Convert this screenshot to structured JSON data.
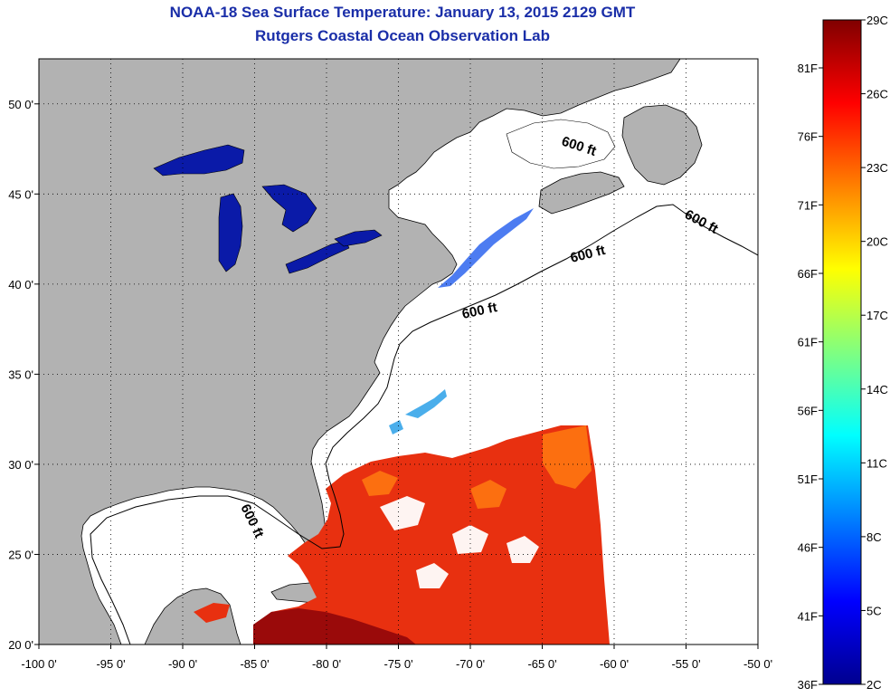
{
  "title": "NOAA-18 Sea Surface Temperature:  January 13, 2015 2129 GMT",
  "subtitle": "Rutgers Coastal Ocean Observation Lab",
  "map": {
    "lon_range": [
      -100,
      -50
    ],
    "lat_range": [
      20,
      52.5
    ],
    "lon_ticks": [
      {
        "value": -100,
        "label": "-100 0'"
      },
      {
        "value": -95,
        "label": "-95 0'"
      },
      {
        "value": -90,
        "label": "-90 0'"
      },
      {
        "value": -85,
        "label": "-85 0'"
      },
      {
        "value": -80,
        "label": "-80 0'"
      },
      {
        "value": -75,
        "label": "-75 0'"
      },
      {
        "value": -70,
        "label": "-70 0'"
      },
      {
        "value": -65,
        "label": "-65 0'"
      },
      {
        "value": -60,
        "label": "-60 0'"
      },
      {
        "value": -55,
        "label": "-55 0'"
      },
      {
        "value": -50,
        "label": "-50 0'"
      }
    ],
    "lat_ticks": [
      {
        "value": 20,
        "label": "20 0'"
      },
      {
        "value": 25,
        "label": "25 0'"
      },
      {
        "value": 30,
        "label": "30 0'"
      },
      {
        "value": 35,
        "label": "35 0'"
      },
      {
        "value": 40,
        "label": "40 0'"
      },
      {
        "value": 45,
        "label": "45 0'"
      },
      {
        "value": 50,
        "label": "50 0'"
      }
    ],
    "grid": "dotted",
    "contour_label": "600 ft",
    "colors": {
      "land": "#b2b2b2",
      "ocean_no_data": "#ffffff",
      "coast": "#000000",
      "lakes": "#0a1aa8"
    }
  },
  "colorbar": {
    "min_c": 2,
    "max_c": 29,
    "celsius_labels": [
      "29C",
      "26C",
      "23C",
      "20C",
      "17C",
      "14C",
      "11C",
      "8C",
      "5C",
      "2C"
    ],
    "fahrenheit_labels": [
      "81F",
      "76F",
      "71F",
      "66F",
      "61F",
      "56F",
      "51F",
      "46F",
      "41F",
      "36F"
    ],
    "colormap": [
      "#00008f",
      "#0000ff",
      "#0080ff",
      "#00ffff",
      "#80ff80",
      "#ffff00",
      "#ff8000",
      "#ff0000",
      "#800000"
    ]
  }
}
